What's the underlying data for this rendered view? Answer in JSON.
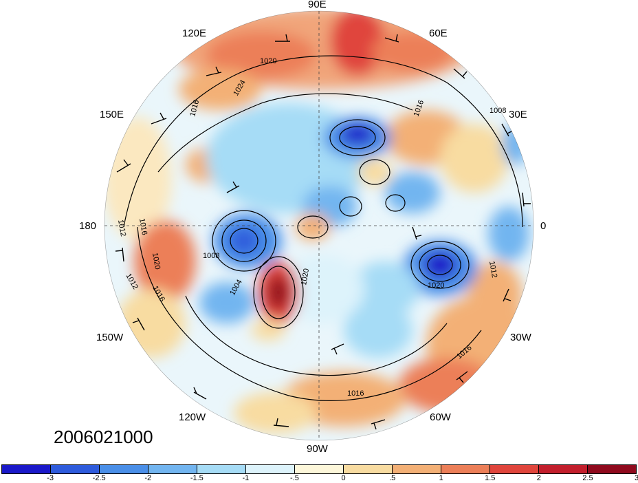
{
  "date_stamp": "2006021000",
  "longitude_labels": {
    "lon_90e": "90E",
    "lon_60e": "60E",
    "lon_120e": "120E",
    "lon_30e": "30E",
    "lon_150e": "150E",
    "lon_180": "180",
    "lon_0": "0",
    "lon_150w": "150W",
    "lon_30w": "30W",
    "lon_120w": "120W",
    "lon_60w": "60W",
    "lon_90w": "90W"
  },
  "contour_labels": [
    "1020",
    "1024",
    "1016",
    "1008",
    "1016",
    "1012",
    "1016",
    "1020",
    "1012",
    "1016",
    "1008",
    "1004",
    "1020",
    "1016",
    "1012",
    "1020",
    "1016"
  ],
  "colorbar": {
    "labels": [
      "-3",
      "-2.5",
      "-2",
      "-1.5",
      "-1",
      "-.5",
      "0",
      ".5",
      "1",
      "1.5",
      "2",
      "2.5",
      "3"
    ],
    "colors": [
      "#1a18c9",
      "#2e5bdc",
      "#4a8fe8",
      "#72b5f0",
      "#a6dcf6",
      "#ddf3fb",
      "#fdf7da",
      "#f8dca1",
      "#f3b076",
      "#ec7f58",
      "#e0453c",
      "#c21e2c",
      "#8f0a1d"
    ]
  }
}
